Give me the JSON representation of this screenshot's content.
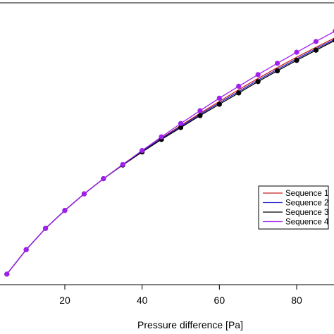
{
  "chart_data": {
    "type": "line",
    "title": "",
    "xlabel": "Pressure difference [Pa]",
    "ylabel": "",
    "xlim": [
      0,
      90
    ],
    "ylim": [
      0,
      1
    ],
    "x_ticks": [
      20,
      40,
      60,
      80
    ],
    "grid": false,
    "legend_position": "right",
    "series": [
      {
        "name": "Sequence 1",
        "color": "#cc2222",
        "marker": false,
        "x": [
          5,
          10,
          15,
          20,
          25,
          30,
          35,
          40,
          45,
          50,
          55,
          60,
          65,
          70,
          75,
          80,
          85,
          90
        ],
        "y": [
          0.0,
          0.084,
          0.157,
          0.219,
          0.276,
          0.328,
          0.377,
          0.424,
          0.468,
          0.511,
          0.553,
          0.594,
          0.634,
          0.673,
          0.71,
          0.746,
          0.78,
          0.813
        ]
      },
      {
        "name": "Sequence 2",
        "color": "#2222cc",
        "marker": false,
        "x": [
          5,
          10,
          15,
          20,
          25,
          30,
          35,
          40,
          45,
          50,
          55,
          60,
          65,
          70,
          75,
          80,
          85,
          90
        ],
        "y": [
          0.0,
          0.084,
          0.157,
          0.219,
          0.276,
          0.328,
          0.376,
          0.422,
          0.466,
          0.508,
          0.549,
          0.589,
          0.628,
          0.667,
          0.704,
          0.74,
          0.775,
          0.808
        ]
      },
      {
        "name": "Sequence 3",
        "color": "#000000",
        "marker": true,
        "x": [
          5,
          10,
          15,
          20,
          25,
          30,
          35,
          40,
          45,
          50,
          55,
          60,
          65,
          70,
          75,
          80,
          85,
          90
        ],
        "y": [
          0.0,
          0.084,
          0.157,
          0.219,
          0.276,
          0.328,
          0.375,
          0.42,
          0.463,
          0.504,
          0.545,
          0.584,
          0.623,
          0.662,
          0.699,
          0.735,
          0.77,
          0.804
        ]
      },
      {
        "name": "Sequence 4",
        "color": "#a020f0",
        "marker": true,
        "x": [
          5,
          10,
          15,
          20,
          25,
          30,
          35,
          40,
          45,
          50,
          55,
          60,
          65,
          70,
          75,
          80,
          85,
          90
        ],
        "y": [
          0.0,
          0.084,
          0.157,
          0.219,
          0.276,
          0.328,
          0.377,
          0.425,
          0.472,
          0.518,
          0.562,
          0.605,
          0.646,
          0.686,
          0.725,
          0.763,
          0.8,
          0.836
        ]
      }
    ]
  }
}
